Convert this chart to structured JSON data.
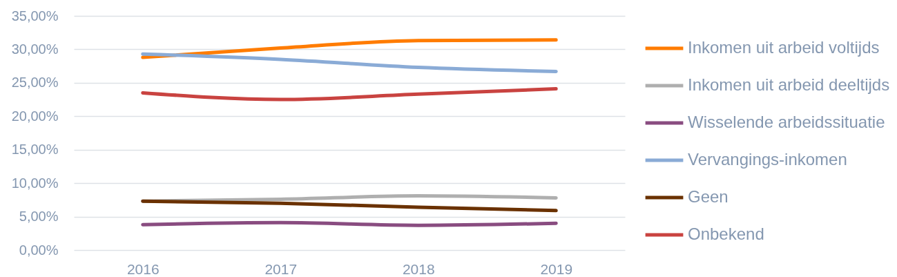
{
  "chart_data": {
    "type": "line",
    "categories": [
      "2016",
      "2017",
      "2018",
      "2019"
    ],
    "series": [
      {
        "name": "Inkomen uit arbeid voltijds",
        "color": "#ff7c00",
        "values": [
          28.8,
          30.2,
          31.3,
          31.4
        ]
      },
      {
        "name": "Inkomen uit arbeid deeltijds",
        "color": "#afafaf",
        "values": [
          7.3,
          7.6,
          8.1,
          7.8
        ]
      },
      {
        "name": "Wisselende arbeidssituatie",
        "color": "#894c80",
        "values": [
          3.8,
          4.1,
          3.7,
          4.0
        ]
      },
      {
        "name": "Vervangings-inkomen",
        "color": "#8aabd6",
        "values": [
          29.3,
          28.5,
          27.3,
          26.7
        ]
      },
      {
        "name": "Geen",
        "color": "#6a3100",
        "values": [
          7.3,
          7.0,
          6.4,
          5.9
        ]
      },
      {
        "name": "Onbekend",
        "color": "#c94340",
        "values": [
          23.5,
          22.5,
          23.3,
          24.1
        ]
      }
    ],
    "ylim": [
      0,
      35
    ],
    "yticks": [
      {
        "value": 0,
        "label": "0,00%"
      },
      {
        "value": 5,
        "label": "5,00%"
      },
      {
        "value": 10,
        "label": "10,00%"
      },
      {
        "value": 15,
        "label": "15,00%"
      },
      {
        "value": 20,
        "label": "20,00%"
      },
      {
        "value": 25,
        "label": "25,00%"
      },
      {
        "value": 30,
        "label": "30,00%"
      },
      {
        "value": 35,
        "label": "35,00%"
      }
    ],
    "grid": "y",
    "legend": "right"
  }
}
